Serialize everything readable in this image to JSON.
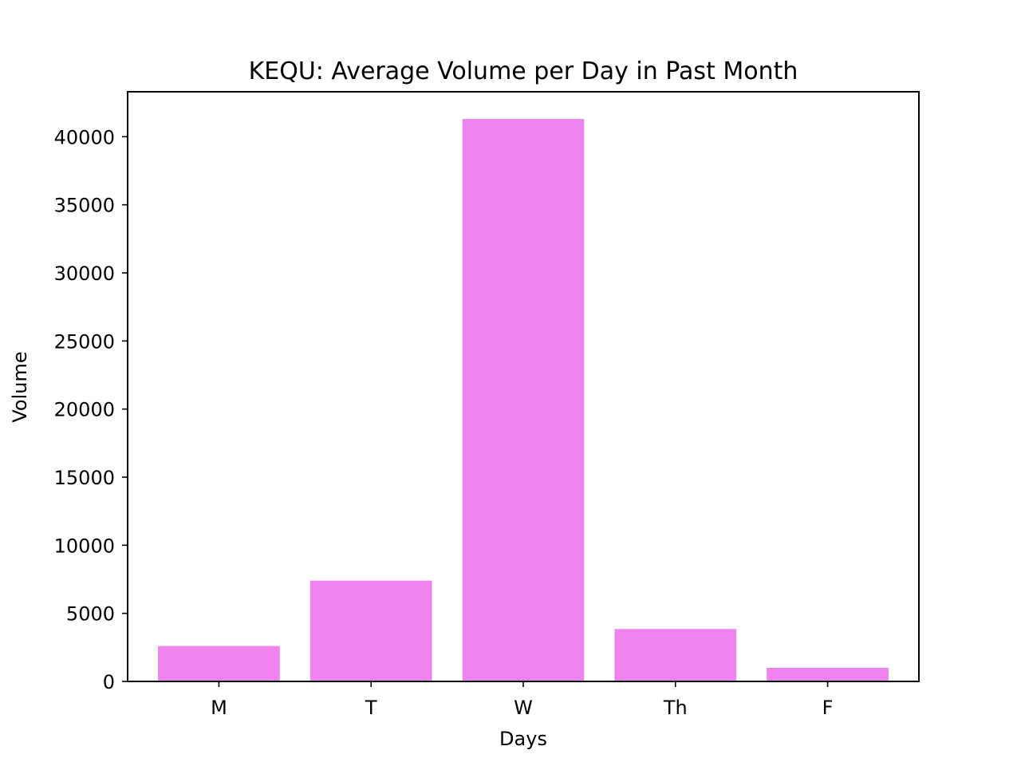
{
  "chart_data": {
    "type": "bar",
    "title": "KEQU: Average Volume per Day in Past Month",
    "xlabel": "Days",
    "ylabel": "Volume",
    "categories": [
      "M",
      "T",
      "W",
      "Th",
      "F"
    ],
    "values": [
      2600,
      7400,
      41300,
      3850,
      1000
    ],
    "ylim": [
      0,
      43300
    ],
    "yticks": [
      0,
      5000,
      10000,
      15000,
      20000,
      25000,
      30000,
      35000,
      40000
    ],
    "bar_color": "#ee82ee",
    "grid": false,
    "legend": false
  }
}
